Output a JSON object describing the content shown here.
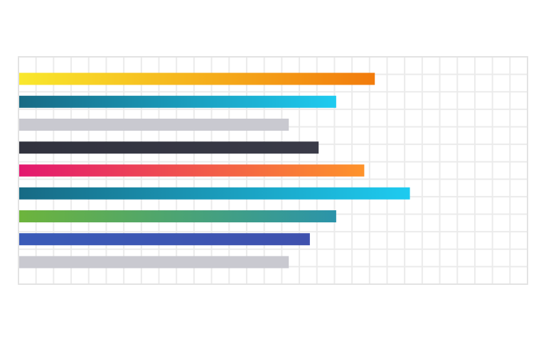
{
  "chart_data": {
    "type": "bar",
    "orientation": "horizontal",
    "title": "",
    "xlabel": "",
    "ylabel": "",
    "xlim": [
      0,
      29
    ],
    "grid": true,
    "legend": "none",
    "categories": [
      "",
      "",
      "",
      "",
      "",
      "",
      "",
      "",
      ""
    ],
    "values": [
      20.3,
      18.1,
      15.4,
      17.1,
      19.7,
      22.3,
      18.1,
      16.6,
      15.4
    ],
    "bar_colors": [
      [
        "#f9e82c",
        "#f27b0c"
      ],
      [
        "#176a84",
        "#1ecbf0"
      ],
      [
        "#c9c9d0",
        "#c9c9d0"
      ],
      [
        "#31323e",
        "#3a3b48"
      ],
      [
        "#e3176f",
        "#fe932a"
      ],
      [
        "#176a84",
        "#1ecbf0"
      ],
      [
        "#6db43c",
        "#2b94aa"
      ],
      [
        "#3a5bb8",
        "#3f51ae"
      ],
      [
        "#c9c9d0",
        "#c9c9d0"
      ]
    ],
    "grid_color": "#ebebeb"
  }
}
